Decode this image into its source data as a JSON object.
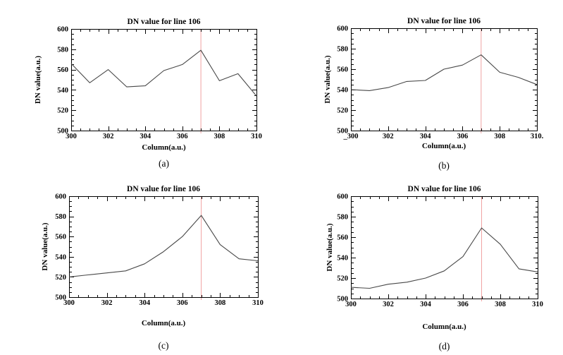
{
  "figure": {
    "background": "#ffffff",
    "description": "Four line plots of DN value versus column number, panels (a)-(d), each with a red vertical marker at column 307"
  },
  "colors": {
    "plot_line": "#484848",
    "marker_line": "#f0a2a2",
    "axis": "#000000",
    "text": "#000000"
  },
  "chart_data": [
    {
      "id": "a",
      "type": "line",
      "title": "DN value for line 106",
      "xlabel": "Column(a.u.)",
      "ylabel": "DN value(a.u.)",
      "caption": "(a)",
      "x": [
        300,
        301,
        302,
        303,
        304,
        305,
        306,
        307,
        308,
        309,
        310
      ],
      "values": [
        566,
        547,
        560,
        543,
        544,
        559,
        565,
        579,
        549,
        556,
        534
      ],
      "xlim": [
        300,
        310
      ],
      "ylim": [
        500,
        600
      ],
      "xticks": [
        300,
        302,
        304,
        306,
        308,
        310
      ],
      "xtick_labels": [
        "300",
        "302",
        "304",
        "306",
        "308",
        "310"
      ],
      "yticks": [
        500,
        520,
        540,
        560,
        580,
        600
      ],
      "ytick_labels": [
        "500",
        "520",
        "540",
        "560",
        "580",
        "600"
      ],
      "x_minor_step": 0.5,
      "y_minor_step": 5,
      "marker_x": 307,
      "grid": false,
      "legend": null
    },
    {
      "id": "b",
      "type": "line",
      "title": "DN value for line 106",
      "xlabel": "Column(a.u.)",
      "ylabel": "DN value(a.u.)",
      "caption": "(b)",
      "x": [
        300,
        301,
        302,
        303,
        304,
        305,
        306,
        307,
        308,
        309,
        310
      ],
      "values": [
        540,
        539,
        542,
        548,
        549,
        560,
        564,
        574,
        557,
        552,
        545
      ],
      "xlim": [
        300,
        310
      ],
      "ylim": [
        500,
        600
      ],
      "xticks": [
        300,
        302,
        304,
        306,
        308,
        310
      ],
      "xtick_labels": [
        "_300",
        "302",
        "304",
        "306",
        "308",
        "310."
      ],
      "yticks": [
        500,
        520,
        540,
        560,
        580,
        600
      ],
      "ytick_labels": [
        "500",
        "520",
        "540",
        "560",
        "580",
        "600"
      ],
      "x_minor_step": 0.5,
      "y_minor_step": 5,
      "marker_x": 307,
      "grid": false,
      "legend": null
    },
    {
      "id": "c",
      "type": "line",
      "title": "DN value for line 106",
      "xlabel": "Column(a.u.)",
      "ylabel": "DN value(a.u.)",
      "caption": "(c)",
      "x": [
        300,
        301,
        302,
        303,
        304,
        305,
        306,
        307,
        308,
        309,
        310
      ],
      "values": [
        520,
        522,
        524,
        526,
        533,
        545,
        560,
        581,
        552,
        538,
        536
      ],
      "xlim": [
        300,
        310
      ],
      "ylim": [
        500,
        600
      ],
      "xticks": [
        300,
        302,
        304,
        306,
        308,
        310
      ],
      "xtick_labels": [
        "300",
        "302",
        "304",
        "306",
        "308",
        "310"
      ],
      "yticks": [
        500,
        520,
        540,
        560,
        580,
        600
      ],
      "ytick_labels": [
        "500",
        "520",
        "540",
        "560",
        "580",
        "600"
      ],
      "x_minor_step": 0.5,
      "y_minor_step": 5,
      "marker_x": 307,
      "grid": false,
      "legend": null
    },
    {
      "id": "d",
      "type": "line",
      "title": "DN value for line 106",
      "xlabel": "Column(a.u.)",
      "ylabel": "DN value(a.u.)",
      "caption": "(d)",
      "x": [
        300,
        301,
        302,
        303,
        304,
        305,
        306,
        307,
        308,
        309,
        310
      ],
      "values": [
        511,
        510,
        514,
        516,
        520,
        527,
        541,
        569,
        553,
        529,
        526
      ],
      "xlim": [
        300,
        310
      ],
      "ylim": [
        500,
        600
      ],
      "xticks": [
        300,
        302,
        304,
        306,
        308,
        310
      ],
      "xtick_labels": [
        "300",
        "302",
        "304",
        "306",
        "308",
        "310"
      ],
      "yticks": [
        500,
        520,
        540,
        560,
        580,
        600
      ],
      "ytick_labels": [
        "500",
        "520",
        "540",
        "560",
        "580",
        "600"
      ],
      "x_minor_step": 0.5,
      "y_minor_step": 5,
      "marker_x": 307,
      "grid": false,
      "legend": null
    }
  ]
}
